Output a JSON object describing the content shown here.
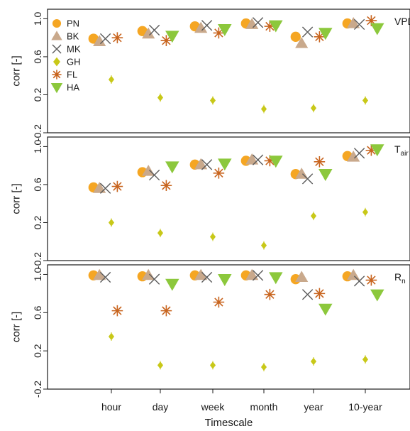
{
  "chart_data": {
    "type": "scatter",
    "xlabel": "Timescale",
    "ylabel": "corr [-]",
    "categories": [
      "hour",
      "day",
      "week",
      "month",
      "year",
      "10-year"
    ],
    "ylim": [
      -0.2,
      1.1
    ],
    "yticks": [
      "-0.2",
      "0.2",
      "0.6",
      "1.0"
    ],
    "legend_position": "top-left",
    "series_meta": [
      {
        "name": "PN",
        "marker": "circle",
        "color": "#f5a623"
      },
      {
        "name": "BK",
        "marker": "triangle-up",
        "color": "#c9a98c"
      },
      {
        "name": "MK",
        "marker": "x",
        "color": "#5a5a5a"
      },
      {
        "name": "GH",
        "marker": "diamond",
        "color": "#c8c818"
      },
      {
        "name": "FL",
        "marker": "asterisk",
        "color": "#c8641e"
      },
      {
        "name": "HA",
        "marker": "triangle-down",
        "color": "#8cc83c"
      }
    ],
    "panels": [
      {
        "label": "VPD",
        "series": [
          {
            "name": "PN",
            "values": [
              0.79,
              0.87,
              0.92,
              0.95,
              0.81,
              0.95
            ]
          },
          {
            "name": "BK",
            "values": [
              0.76,
              0.84,
              0.9,
              0.94,
              0.74,
              0.95
            ]
          },
          {
            "name": "MK",
            "values": [
              0.79,
              0.88,
              0.93,
              0.96,
              0.86,
              0.94
            ]
          },
          {
            "name": "GH",
            "values": [
              0.36,
              0.17,
              0.14,
              0.05,
              0.06,
              0.14
            ]
          },
          {
            "name": "FL",
            "values": [
              0.8,
              0.77,
              0.85,
              0.92,
              0.81,
              0.98
            ]
          },
          {
            "name": "HA",
            "values": [
              null,
              0.82,
              0.89,
              0.93,
              0.85,
              0.9
            ]
          }
        ]
      },
      {
        "label": "T",
        "label_sub": "air",
        "series": [
          {
            "name": "PN",
            "values": [
              0.57,
              0.73,
              0.81,
              0.85,
              0.71,
              0.9
            ]
          },
          {
            "name": "BK",
            "values": [
              0.56,
              0.74,
              0.81,
              0.86,
              0.71,
              0.89
            ]
          },
          {
            "name": "MK",
            "values": [
              0.56,
              0.7,
              0.81,
              0.86,
              0.66,
              0.93
            ]
          },
          {
            "name": "GH",
            "values": [
              0.2,
              0.09,
              0.05,
              -0.04,
              0.27,
              0.31
            ]
          },
          {
            "name": "FL",
            "values": [
              0.58,
              0.59,
              0.72,
              0.85,
              0.84,
              0.96
            ]
          },
          {
            "name": "HA",
            "values": [
              null,
              0.79,
              0.82,
              0.85,
              0.71,
              0.97
            ]
          }
        ]
      },
      {
        "label": "R",
        "label_sub": "n",
        "series": [
          {
            "name": "PN",
            "values": [
              0.99,
              0.98,
              0.99,
              0.99,
              0.95,
              0.98
            ]
          },
          {
            "name": "BK",
            "values": [
              0.99,
              0.99,
              0.99,
              0.99,
              0.97,
              0.99
            ]
          },
          {
            "name": "MK",
            "values": [
              0.97,
              0.95,
              0.97,
              0.99,
              0.79,
              0.93
            ]
          },
          {
            "name": "GH",
            "values": [
              0.35,
              0.05,
              0.05,
              0.03,
              0.09,
              0.11
            ]
          },
          {
            "name": "FL",
            "values": [
              0.62,
              0.62,
              0.71,
              0.79,
              0.8,
              0.94
            ]
          },
          {
            "name": "HA",
            "values": [
              null,
              0.9,
              0.95,
              0.97,
              0.64,
              0.79
            ]
          }
        ]
      }
    ]
  }
}
